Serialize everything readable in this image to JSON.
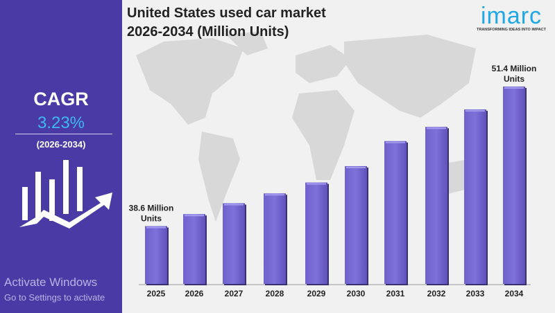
{
  "cagr": {
    "label": "CAGR",
    "value": "3.23%",
    "period": "(2026-2034)"
  },
  "logo": {
    "name": "imarc",
    "tagline": "TRANSFORMING IDEAS INTO IMPACT"
  },
  "colors": {
    "panel": "#4a3aa6",
    "accent": "#3db8f0",
    "bar": "#7b6fd6"
  },
  "watermark": {
    "line1": "Activate Windows",
    "line2": "Go to Settings to activate"
  },
  "chart_data": {
    "type": "bar",
    "title": "United States used car market 2026-2034 (Million Units)",
    "title_lines": [
      "United States used car market",
      "2026-2034 (Million Units)"
    ],
    "categories": [
      "2025",
      "2026",
      "2027",
      "2028",
      "2029",
      "2030",
      "2031",
      "2032",
      "2033",
      "2034"
    ],
    "values": [
      38.6,
      39.7,
      40.7,
      41.6,
      42.6,
      44.1,
      46.4,
      47.7,
      49.3,
      51.4
    ],
    "ylim": [
      33.3,
      51.4
    ],
    "annotations": [
      {
        "category": "2025",
        "lines": [
          "38.6 Million",
          "Units"
        ]
      },
      {
        "category": "2034",
        "lines": [
          "51.4 Million",
          "Units"
        ]
      }
    ],
    "xlabel": "",
    "ylabel": "",
    "grid": false
  }
}
